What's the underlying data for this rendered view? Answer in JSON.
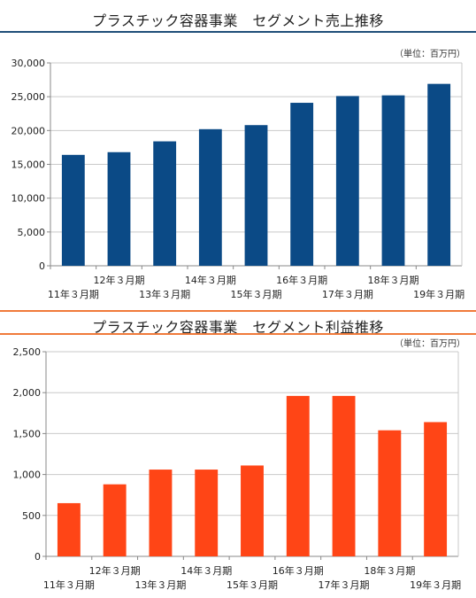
{
  "colors": {
    "top_bar": "#0b4a86",
    "top_rule": "#1f4e79",
    "bottom_bar": "#ff4516",
    "bottom_rule": "#f07a3a",
    "grid": "#c9c9c9",
    "axis": "#888888"
  },
  "chart_data": [
    {
      "type": "bar",
      "title": "プラスチック容器事業　セグメント売上推移",
      "unit_label": "（単位：百万円）",
      "categories": [
        "11年３月期",
        "12年３月期",
        "13年３月期",
        "14年３月期",
        "15年３月期",
        "16年３月期",
        "17年３月期",
        "18年３月期",
        "19年３月期"
      ],
      "values": [
        16400,
        16800,
        18400,
        20200,
        20800,
        24100,
        25100,
        25200,
        26900
      ],
      "ylim": [
        0,
        30000
      ],
      "yticks": [
        "0",
        "5,000",
        "10,000",
        "15,000",
        "20,000",
        "25,000",
        "30,000"
      ],
      "grid": true
    },
    {
      "type": "bar",
      "title": "プラスチック容器事業　セグメント利益推移",
      "unit_label": "（単位：百万円）",
      "categories": [
        "11年３月期",
        "12年３月期",
        "13年３月期",
        "14年３月期",
        "15年３月期",
        "16年３月期",
        "17年３月期",
        "18年３月期",
        "19年３月期"
      ],
      "values": [
        650,
        880,
        1060,
        1060,
        1110,
        1960,
        1960,
        1540,
        1640
      ],
      "ylim": [
        0,
        2500
      ],
      "yticks": [
        "0",
        "500",
        "1,000",
        "1,500",
        "2,000",
        "2,500"
      ],
      "grid": true
    }
  ]
}
